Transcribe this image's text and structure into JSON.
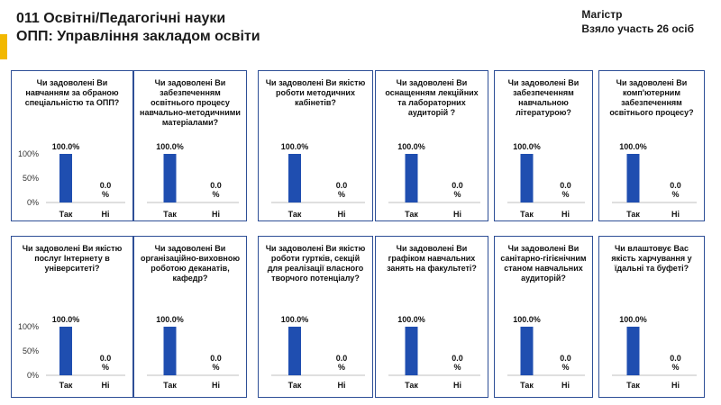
{
  "header": {
    "title_line1": "011 Освітні/Педагогічні науки",
    "title_line2": "ОПП: Управління закладом освіти",
    "degree": "Магістр",
    "participants": "Взяло участь 26 осіб"
  },
  "colors": {
    "bar": "#1f4eb0",
    "border": "#2e4f96",
    "accent": "#f2b800"
  },
  "chart_data": [
    {
      "type": "bar",
      "title": "Чи задоволені Ви навчанням за обраною спеціальністю та ОПП?",
      "categories": [
        "Так",
        "Ні"
      ],
      "values": [
        100.0,
        0.0
      ],
      "value_labels": [
        "100.0%",
        "0.0 %"
      ],
      "yticks": [
        "0%",
        "50%",
        "100%"
      ],
      "ylim": [
        0,
        100
      ]
    },
    {
      "type": "bar",
      "title": "Чи задоволені Ви забезпеченням освітнього процесу навчально-методичними матеріалами?",
      "categories": [
        "Так",
        "Ні"
      ],
      "values": [
        100.0,
        0.0
      ],
      "value_labels": [
        "100.0%",
        "0.0 %"
      ],
      "ylim": [
        0,
        100
      ]
    },
    {
      "type": "bar",
      "title": "Чи задоволені Ви якістю роботи методичних кабінетів?",
      "categories": [
        "Так",
        "Ні"
      ],
      "values": [
        100.0,
        0.0
      ],
      "value_labels": [
        "100.0%",
        "0.0 %"
      ],
      "ylim": [
        0,
        100
      ]
    },
    {
      "type": "bar",
      "title": "Чи задоволені Ви оснащенням лекційних та лабораторних аудиторій ?",
      "categories": [
        "Так",
        "Ні"
      ],
      "values": [
        100.0,
        0.0
      ],
      "value_labels": [
        "100.0%",
        "0.0 %"
      ],
      "ylim": [
        0,
        100
      ]
    },
    {
      "type": "bar",
      "title": "Чи задоволені Ви забезпеченням навчальною літературою?",
      "categories": [
        "Так",
        "Ні"
      ],
      "values": [
        100.0,
        0.0
      ],
      "value_labels": [
        "100.0%",
        "0.0 %"
      ],
      "ylim": [
        0,
        100
      ]
    },
    {
      "type": "bar",
      "title": "Чи задоволені Ви комп'ютерним забезпеченням освітнього процесу?",
      "categories": [
        "Так",
        "Ні"
      ],
      "values": [
        100.0,
        0.0
      ],
      "value_labels": [
        "100.0%",
        "0.0 %"
      ],
      "ylim": [
        0,
        100
      ]
    },
    {
      "type": "bar",
      "title": "Чи задоволені Ви якістю послуг Інтернету в університеті?",
      "categories": [
        "Так",
        "Ні"
      ],
      "values": [
        100.0,
        0.0
      ],
      "value_labels": [
        "100.0%",
        "0.0 %"
      ],
      "yticks": [
        "0%",
        "50%",
        "100%"
      ],
      "ylim": [
        0,
        100
      ]
    },
    {
      "type": "bar",
      "title": "Чи задоволені Ви організаційно-виховною роботою деканатів, кафедр?",
      "categories": [
        "Так",
        "Ні"
      ],
      "values": [
        100.0,
        0.0
      ],
      "value_labels": [
        "100.0%",
        "0.0 %"
      ],
      "ylim": [
        0,
        100
      ]
    },
    {
      "type": "bar",
      "title": "Чи задоволені Ви якістю роботи гуртків, секцій для реалізації власного творчого потенціалу?",
      "categories": [
        "Так",
        "Ні"
      ],
      "values": [
        100.0,
        0.0
      ],
      "value_labels": [
        "100.0%",
        "0.0 %"
      ],
      "ylim": [
        0,
        100
      ]
    },
    {
      "type": "bar",
      "title": "Чи задоволені Ви графіком навчальних занять на факультеті?",
      "categories": [
        "Так",
        "Ні"
      ],
      "values": [
        100.0,
        0.0
      ],
      "value_labels": [
        "100.0%",
        "0.0 %"
      ],
      "ylim": [
        0,
        100
      ]
    },
    {
      "type": "bar",
      "title": "Чи задоволені Ви санітарно-гігієнічним станом навчальних аудиторій?",
      "categories": [
        "Так",
        "Ні"
      ],
      "values": [
        100.0,
        0.0
      ],
      "value_labels": [
        "100.0%",
        "0.0 %"
      ],
      "ylim": [
        0,
        100
      ]
    },
    {
      "type": "bar",
      "title": "Чи влаштовує Вас якість харчування у їдальні та буфеті?",
      "categories": [
        "Так",
        "Ні"
      ],
      "values": [
        100.0,
        0.0
      ],
      "value_labels": [
        "100.0%",
        "0.0 %"
      ],
      "ylim": [
        0,
        100
      ]
    }
  ]
}
